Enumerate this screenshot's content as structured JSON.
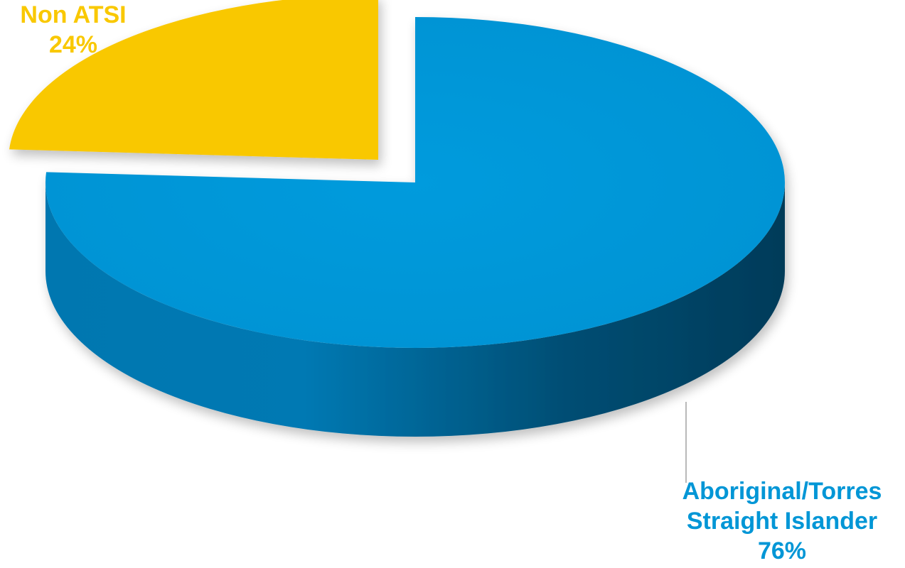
{
  "chart_data": {
    "type": "pie",
    "style": "3d-exploded",
    "title": "",
    "slices": [
      {
        "name": "Aboriginal/Torres Straight Islander",
        "value": 76,
        "label_lines": [
          "Aboriginal/Torres",
          "Straight Islander",
          "76%"
        ],
        "color": "#0096D6"
      },
      {
        "name": "Non ATSI",
        "value": 24,
        "label_lines": [
          "Non ATSI",
          "24%"
        ],
        "color": "#F9C800"
      }
    ]
  }
}
